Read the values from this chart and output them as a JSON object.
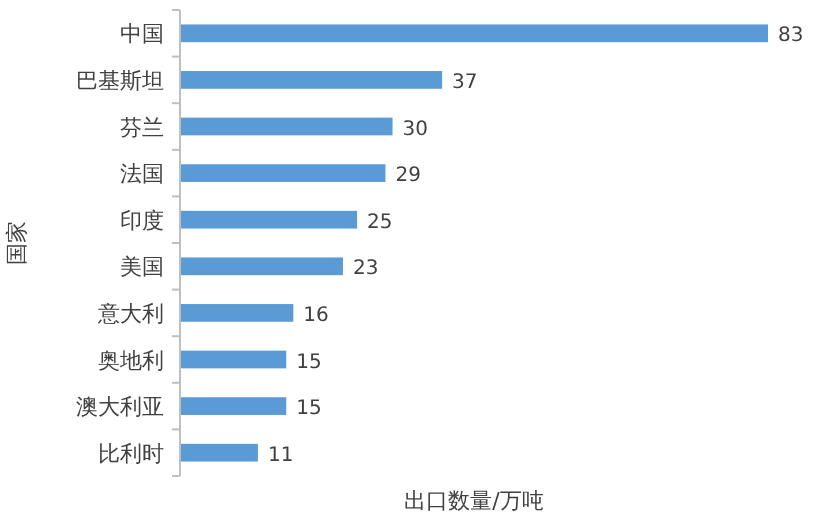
{
  "chart_data": {
    "type": "bar",
    "orientation": "horizontal",
    "xlabel": "出口数量/万吨",
    "ylabel": "国家",
    "categories": [
      "中国",
      "巴基斯坦",
      "芬兰",
      "法国",
      "印度",
      "美国",
      "意大利",
      "奥地利",
      "澳大利亚",
      "比利时"
    ],
    "values": [
      83,
      37,
      30,
      29,
      25,
      23,
      16,
      15,
      15,
      11
    ],
    "color": "#5b9bd5",
    "data_labels": true,
    "grid": false
  }
}
